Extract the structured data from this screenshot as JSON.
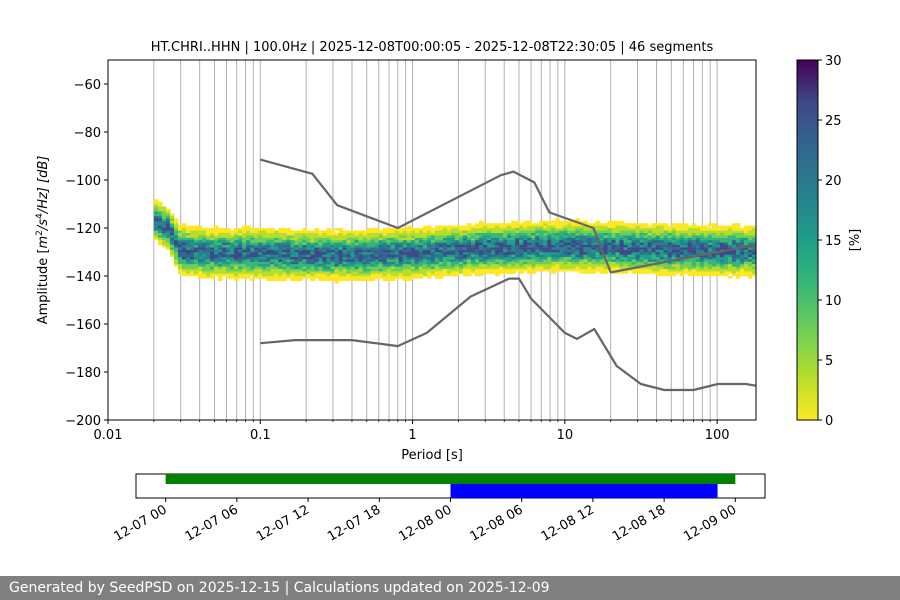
{
  "chart_data": [
    {
      "type": "heatmap",
      "title": "HT.CHRI..HHN | 100.0Hz | 2025-12-08T00:00:05 - 2025-12-08T22:30:05 | 46 segments",
      "xlabel": "Period [s]",
      "ylabel": "Amplitude [m²/s⁴/Hz] [dB]",
      "ylabel_parts": {
        "prefix": "Amplitude [",
        "m": "m",
        "sup2": "2",
        "mid": "/s",
        "sup4": "4",
        "suffix": "/Hz] [dB]"
      },
      "x_scale": "log",
      "xlim": [
        0.01,
        180
      ],
      "ylim": [
        -200,
        -50
      ],
      "x_ticks": [
        0.01,
        0.1,
        1,
        10,
        100
      ],
      "x_tick_labels": [
        "0.01",
        "0.1",
        "1",
        "10",
        "100"
      ],
      "y_ticks": [
        -200,
        -180,
        -160,
        -140,
        -120,
        -100,
        -80,
        -60
      ],
      "y_tick_labels": [
        "−200",
        "−180",
        "−160",
        "−140",
        "−120",
        "−100",
        "−80",
        "−60"
      ],
      "grid": "vertical lines at log-decade subdivisions",
      "colormap": "viridis_r",
      "density_band": [
        {
          "period": 0.02,
          "db": -117,
          "spread": 5
        },
        {
          "period": 0.025,
          "db": -121,
          "spread": 5
        },
        {
          "period": 0.03,
          "db": -130,
          "spread": 6
        },
        {
          "period": 0.05,
          "db": -131,
          "spread": 6
        },
        {
          "period": 0.1,
          "db": -131,
          "spread": 6
        },
        {
          "period": 0.3,
          "db": -132,
          "spread": 6
        },
        {
          "period": 1,
          "db": -131,
          "spread": 6
        },
        {
          "period": 3,
          "db": -129,
          "spread": 6
        },
        {
          "period": 10,
          "db": -128,
          "spread": 6
        },
        {
          "period": 30,
          "db": -129,
          "spread": 6
        },
        {
          "period": 100,
          "db": -130,
          "spread": 6
        },
        {
          "period": 180,
          "db": -130,
          "spread": 6
        }
      ],
      "noise_model_high": [
        {
          "period": 0.1,
          "db": -91.5
        },
        {
          "period": 0.22,
          "db": -97.4
        },
        {
          "period": 0.32,
          "db": -110.5
        },
        {
          "period": 0.8,
          "db": -120
        },
        {
          "period": 3.8,
          "db": -98
        },
        {
          "period": 4.6,
          "db": -96.5
        },
        {
          "period": 6.3,
          "db": -101
        },
        {
          "period": 7.9,
          "db": -113.5
        },
        {
          "period": 15.4,
          "db": -120
        },
        {
          "period": 20,
          "db": -138.5
        },
        {
          "period": 180,
          "db": -127
        }
      ],
      "noise_model_low": [
        {
          "period": 0.1,
          "db": -168
        },
        {
          "period": 0.17,
          "db": -166.7
        },
        {
          "period": 0.4,
          "db": -166.7
        },
        {
          "period": 0.8,
          "db": -169.2
        },
        {
          "period": 1.24,
          "db": -163.7
        },
        {
          "period": 2.4,
          "db": -148.6
        },
        {
          "period": 4.3,
          "db": -141.1
        },
        {
          "period": 5.0,
          "db": -141.1
        },
        {
          "period": 6.0,
          "db": -149.4
        },
        {
          "period": 10,
          "db": -163.7
        },
        {
          "period": 12,
          "db": -166.2
        },
        {
          "period": 15.6,
          "db": -162.1
        },
        {
          "period": 21.9,
          "db": -177.5
        },
        {
          "period": 31.6,
          "db": -185
        },
        {
          "period": 45,
          "db": -187.5
        },
        {
          "period": 70,
          "db": -187.5
        },
        {
          "period": 101,
          "db": -185
        },
        {
          "period": 154,
          "db": -185
        },
        {
          "period": 180,
          "db": -185.7
        }
      ],
      "colorbar": {
        "label": "[%]",
        "min": 0,
        "max": 30,
        "ticks": [
          0,
          5,
          10,
          15,
          20,
          25,
          30
        ],
        "tick_labels": [
          "0",
          "5",
          "10",
          "15",
          "20",
          "25",
          "30"
        ]
      }
    },
    {
      "type": "bar",
      "subtype": "timeline",
      "x_tick_labels": [
        "12-07 00",
        "12-07 06",
        "12-07 12",
        "12-07 18",
        "12-08 00",
        "12-08 06",
        "12-08 12",
        "12-08 18",
        "12-09 00"
      ],
      "x_range": [
        "2025-12-06 21:30",
        "2025-12-09 02:30"
      ],
      "bars": [
        {
          "start": "2025-12-07 00:00",
          "end": "2025-12-09 00:00",
          "color": "#008000"
        },
        {
          "start": "2025-12-08 00:00",
          "end": "2025-12-08 22:30",
          "color": "#0000ff"
        }
      ]
    }
  ],
  "footer": {
    "text": "Generated by SeedPSD on 2025-12-15 | Calculations updated on 2025-12-09"
  },
  "colors": {
    "model_line": "#666666",
    "grid": "#b0b0b0",
    "footer_bg": "#808080"
  }
}
